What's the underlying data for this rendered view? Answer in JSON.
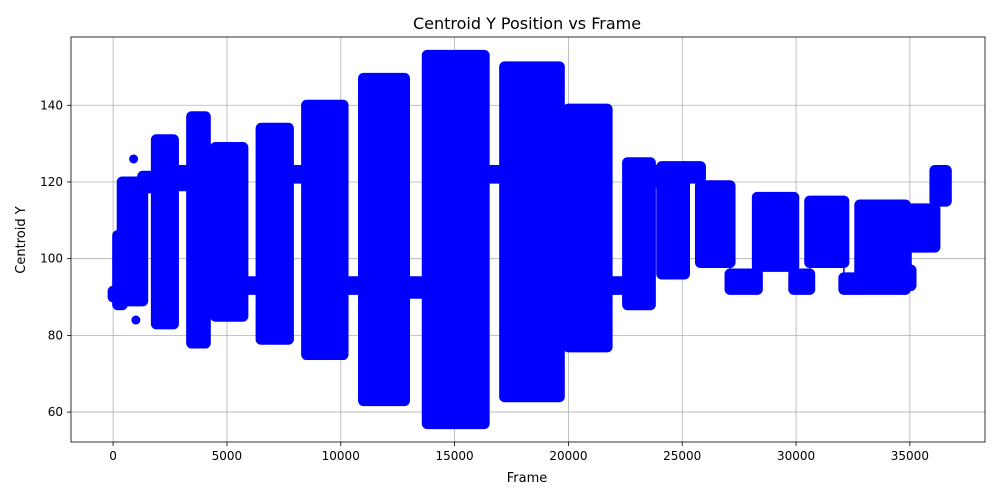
{
  "chart_data": {
    "type": "scatter",
    "title": "Centroid Y Position vs Frame",
    "xlabel": "Frame",
    "ylabel": "Centroid Y",
    "xlim": [
      -1850,
      38300
    ],
    "ylim": [
      52.2,
      157.8
    ],
    "xticks": [
      0,
      5000,
      10000,
      15000,
      20000,
      25000,
      30000,
      35000
    ],
    "yticks": [
      60,
      80,
      100,
      120,
      140
    ],
    "grid": true,
    "legend": "none",
    "colors": {
      "series": "#0000ff",
      "grid": "#b0b0b0",
      "axes": "#000000"
    },
    "marker": "circle",
    "series": [
      {
        "segments": [
          {
            "x0": 0,
            "x1": 200,
            "lo": 90,
            "hi": 91.5
          },
          {
            "x0": 200,
            "x1": 400,
            "lo": 88,
            "hi": 106
          },
          {
            "x0": 400,
            "x1": 1300,
            "lo": 89,
            "hi": 120
          },
          {
            "x0": 1300,
            "x1": 1900,
            "lo": 118.5,
            "hi": 121.5
          },
          {
            "x0": 1900,
            "x1": 2650,
            "lo": 83,
            "hi": 131
          },
          {
            "x0": 2650,
            "x1": 3450,
            "lo": 119,
            "hi": 123
          },
          {
            "x0": 3450,
            "x1": 4050,
            "lo": 78,
            "hi": 137
          },
          {
            "x0": 4050,
            "x1": 4500,
            "lo": 119,
            "hi": 123
          },
          {
            "x0": 4500,
            "x1": 5700,
            "lo": 85,
            "hi": 129
          },
          {
            "x0": 5700,
            "x1": 6500,
            "lo": 92,
            "hi": 94
          },
          {
            "x0": 6500,
            "x1": 7700,
            "lo": 79,
            "hi": 134
          },
          {
            "x0": 7700,
            "x1": 8500,
            "lo": 121,
            "hi": 123
          },
          {
            "x0": 8500,
            "x1": 10100,
            "lo": 75,
            "hi": 140
          },
          {
            "x0": 10100,
            "x1": 11000,
            "lo": 92,
            "hi": 94
          },
          {
            "x0": 11000,
            "x1": 12800,
            "lo": 63,
            "hi": 147
          },
          {
            "x0": 12800,
            "x1": 13800,
            "lo": 91,
            "hi": 94
          },
          {
            "x0": 13800,
            "x1": 16300,
            "lo": 57,
            "hi": 153
          },
          {
            "x0": 16300,
            "x1": 17200,
            "lo": 121,
            "hi": 123
          },
          {
            "x0": 17200,
            "x1": 19600,
            "lo": 64,
            "hi": 150
          },
          {
            "x0": 19600,
            "x1": 20000,
            "lo": 121,
            "hi": 123
          },
          {
            "x0": 20000,
            "x1": 21700,
            "lo": 77,
            "hi": 139
          },
          {
            "x0": 21700,
            "x1": 22600,
            "lo": 92,
            "hi": 94
          },
          {
            "x0": 22600,
            "x1": 23600,
            "lo": 88,
            "hi": 125
          },
          {
            "x0": 23600,
            "x1": 24100,
            "lo": 120,
            "hi": 123
          },
          {
            "x0": 24100,
            "x1": 25100,
            "lo": 96,
            "hi": 124
          },
          {
            "x0": 25100,
            "x1": 25800,
            "lo": 121,
            "hi": 124
          },
          {
            "x0": 25800,
            "x1": 27100,
            "lo": 99,
            "hi": 119
          },
          {
            "x0": 27100,
            "x1": 28300,
            "lo": 92,
            "hi": 96
          },
          {
            "x0": 28300,
            "x1": 29900,
            "lo": 98,
            "hi": 116
          },
          {
            "x0": 29900,
            "x1": 30600,
            "lo": 92,
            "hi": 96
          },
          {
            "x0": 30600,
            "x1": 32100,
            "lo": 99,
            "hi": 115
          },
          {
            "x0": 32100,
            "x1": 32800,
            "lo": 92,
            "hi": 95
          },
          {
            "x0": 32800,
            "x1": 34800,
            "lo": 92,
            "hi": 114
          },
          {
            "x0": 34800,
            "x1": 35050,
            "lo": 93,
            "hi": 97
          },
          {
            "x0": 35050,
            "x1": 36100,
            "lo": 103,
            "hi": 113
          },
          {
            "x0": 36100,
            "x1": 36600,
            "lo": 115,
            "hi": 123
          }
        ],
        "outliers": [
          {
            "x": 900,
            "y": 126
          },
          {
            "x": 1000,
            "y": 84
          },
          {
            "x": 300,
            "y": 88
          }
        ]
      }
    ]
  }
}
